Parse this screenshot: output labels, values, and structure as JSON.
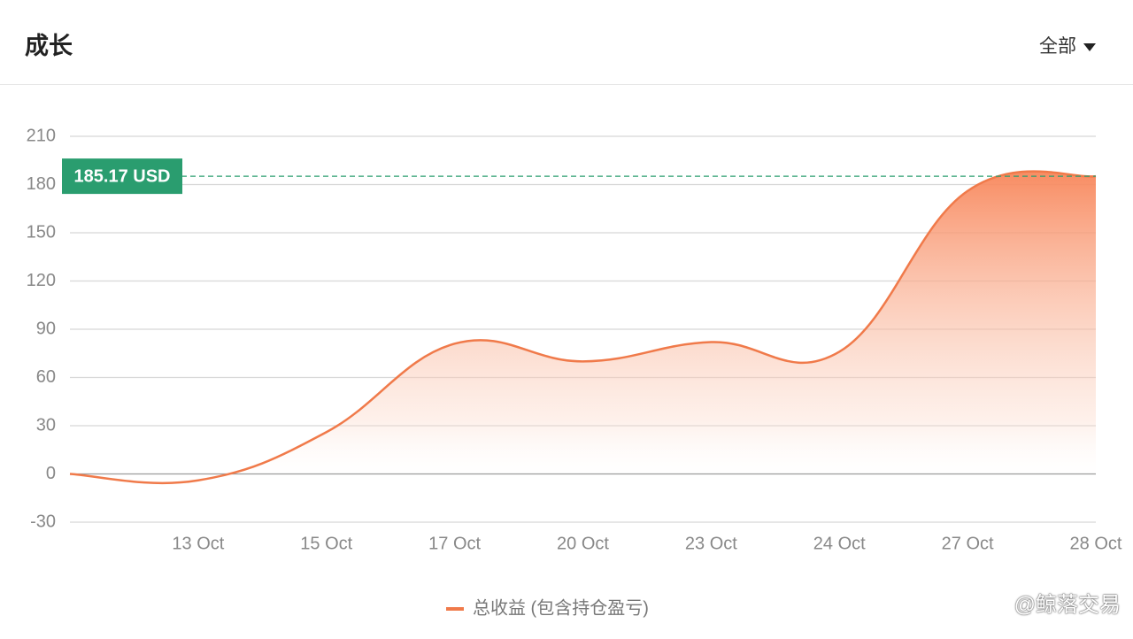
{
  "header": {
    "title": "成长",
    "filter": "全部"
  },
  "watermark": "@鲸落交易",
  "chart_data": {
    "type": "area",
    "categories": [
      null,
      "13 Oct",
      "15 Oct",
      "17 Oct",
      "20 Oct",
      "23 Oct",
      "24 Oct",
      "27 Oct",
      "28 Oct"
    ],
    "series": [
      {
        "name": "总收益 (包含持仓盈亏)",
        "color": "#f07a4a",
        "values": [
          0,
          -4,
          26,
          81,
          70,
          82,
          76,
          176,
          185.17
        ],
        "value_labels": [
          null,
          null,
          null,
          null,
          null,
          null,
          null,
          null,
          "185.17 USD"
        ]
      }
    ],
    "ylim": [
      -30,
      210
    ],
    "yticks": [
      -30,
      0,
      30,
      60,
      90,
      120,
      150,
      180,
      210
    ],
    "grid": true,
    "marker_color": "#2a9d6f"
  }
}
